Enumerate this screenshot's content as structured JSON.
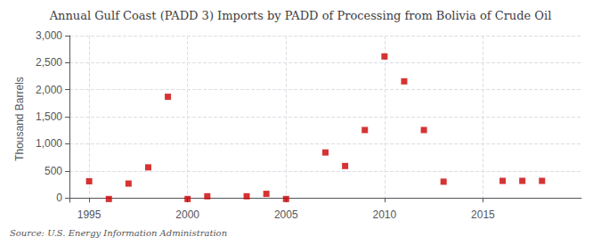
{
  "chart_data": {
    "type": "scatter",
    "title": "Annual Gulf Coast (PADD 3) Imports by PADD of Processing from Bolivia of Crude Oil",
    "ylabel": "Thousand Barrels",
    "source": "Source: U.S. Energy Information Administration",
    "x": [
      1995,
      1996,
      1997,
      1998,
      1999,
      2000,
      2001,
      2003,
      2004,
      2005,
      2007,
      2008,
      2009,
      2010,
      2011,
      2012,
      2013,
      2016,
      2017,
      2018
    ],
    "values": [
      307,
      -20,
      265,
      565,
      1870,
      -20,
      30,
      30,
      75,
      -20,
      840,
      590,
      1255,
      2615,
      2155,
      1255,
      300,
      315,
      315,
      315
    ],
    "color": "#cc0000",
    "marker": "square",
    "xlim": [
      1994.0,
      2020.0
    ],
    "xticks": [
      1995,
      2000,
      2005,
      2010,
      2015
    ],
    "ylim": [
      -80,
      3000
    ],
    "yticks": [
      0,
      500,
      {
        "value": 1000,
        "label": "1,000"
      },
      {
        "value": 1500,
        "label": "1,500"
      },
      {
        "value": 2000,
        "label": "2,000"
      },
      {
        "value": 2500,
        "label": "2,500"
      },
      {
        "value": 3000,
        "label": "3,000"
      }
    ],
    "grid": true
  }
}
